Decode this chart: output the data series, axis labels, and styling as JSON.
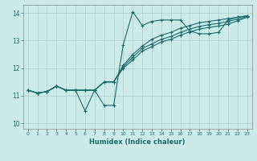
{
  "xlabel": "Humidex (Indice chaleur)",
  "bg_color": "#cceae7",
  "line_color": "#1a6b6b",
  "grid_color": "#aacfcf",
  "xlim": [
    -0.5,
    23.5
  ],
  "ylim": [
    9.8,
    14.3
  ],
  "yticks": [
    10,
    11,
    12,
    13,
    14
  ],
  "xticks": [
    0,
    1,
    2,
    3,
    4,
    5,
    6,
    7,
    8,
    9,
    10,
    11,
    12,
    13,
    14,
    15,
    16,
    17,
    18,
    19,
    20,
    21,
    22,
    23
  ],
  "series": [
    [
      11.2,
      11.1,
      11.15,
      11.35,
      11.2,
      11.2,
      10.45,
      11.2,
      10.65,
      10.65,
      12.85,
      14.05,
      13.55,
      13.7,
      13.75,
      13.75,
      13.75,
      13.35,
      13.25,
      13.25,
      13.3,
      13.75,
      13.85,
      13.9
    ],
    [
      11.2,
      11.1,
      11.15,
      11.35,
      11.2,
      11.2,
      11.2,
      11.2,
      11.5,
      11.5,
      12.1,
      12.5,
      12.8,
      13.05,
      13.2,
      13.3,
      13.45,
      13.55,
      13.65,
      13.7,
      13.75,
      13.8,
      13.85,
      13.9
    ],
    [
      11.2,
      11.1,
      11.15,
      11.35,
      11.2,
      11.2,
      11.2,
      11.2,
      11.5,
      11.5,
      12.05,
      12.4,
      12.72,
      12.88,
      13.05,
      13.15,
      13.3,
      13.42,
      13.52,
      13.58,
      13.63,
      13.7,
      13.78,
      13.88
    ],
    [
      11.2,
      11.1,
      11.15,
      11.35,
      11.2,
      11.2,
      11.2,
      11.2,
      11.5,
      11.5,
      12.0,
      12.3,
      12.62,
      12.78,
      12.95,
      13.05,
      13.2,
      13.32,
      13.42,
      13.48,
      13.53,
      13.6,
      13.72,
      13.85
    ]
  ]
}
